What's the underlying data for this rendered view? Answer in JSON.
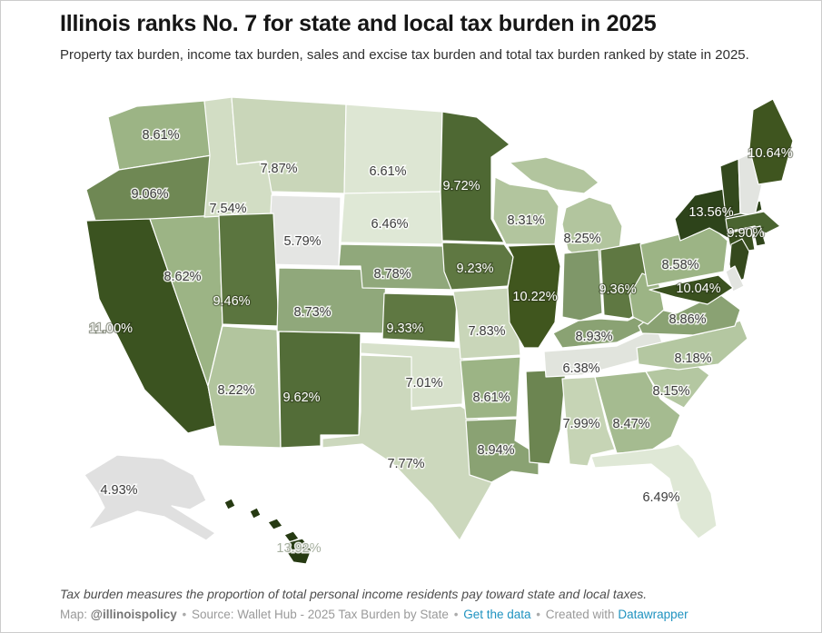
{
  "header": {
    "title": "Illinois ranks No. 7 for state and local tax burden in 2025",
    "subtitle": "Property tax burden, income tax burden, sales and excise tax burden and total tax burden ranked by state in 2025."
  },
  "footer": {
    "note": "Tax burden measures the proportion of total personal income residents pay toward state and local taxes.",
    "credit": {
      "map_label": "Map:",
      "handle": "@illinoispolicy",
      "sep": "•",
      "source_label": "Source:",
      "source": "Wallet Hub - 2025 Tax Burden by State",
      "get_data": "Get the data",
      "created_with": "Created with",
      "tool": "Datawrapper"
    }
  },
  "colors": {
    "background": "#ffffff",
    "frame_border": "#cccccc",
    "title": "#161616",
    "subtitle": "#303030",
    "note": "#4d4d4d",
    "credit": "#9a9a9a",
    "link": "#2093c0",
    "state_border": "#ffffff",
    "label_dark": "#3b3b3b",
    "label_light": "#ffffff",
    "scale_low": "#e4e5e3",
    "scale_high": "#263a12"
  },
  "chart_data": {
    "type": "choropleth",
    "region": "United States",
    "unit": "%",
    "states": [
      {
        "abbr": "WA",
        "name": "Washington",
        "value": 8.61,
        "label": "8.61%",
        "label_style": "dark",
        "fill": "#9cb485"
      },
      {
        "abbr": "OR",
        "name": "Oregon",
        "value": 9.06,
        "label": "9.06%",
        "label_style": "dark",
        "fill": "#6f8854"
      },
      {
        "abbr": "CA",
        "name": "California",
        "value": 11.0,
        "label": "11.00%",
        "label_style": "light",
        "fill": "#3b5320"
      },
      {
        "abbr": "NV",
        "name": "Nevada",
        "value": 8.62,
        "label": "8.62%",
        "label_style": "dark",
        "fill": "#9cb485"
      },
      {
        "abbr": "ID",
        "name": "Idaho",
        "value": 7.54,
        "label": "7.54%",
        "label_style": "dark",
        "fill": "#d2ddc4"
      },
      {
        "abbr": "MT",
        "name": "Montana",
        "value": 7.87,
        "label": "7.87%",
        "label_style": "dark",
        "fill": "#c9d6b9"
      },
      {
        "abbr": "WY",
        "name": "Wyoming",
        "value": 5.79,
        "label": "5.79%",
        "label_style": "dark",
        "fill": "#e4e5e3"
      },
      {
        "abbr": "UT",
        "name": "Utah",
        "value": 9.46,
        "label": "9.46%",
        "label_style": "light",
        "fill": "#5b753f"
      },
      {
        "abbr": "CO",
        "name": "Colorado",
        "value": 8.73,
        "label": "8.73%",
        "label_style": "dark",
        "fill": "#90a87b"
      },
      {
        "abbr": "AZ",
        "name": "Arizona",
        "value": 8.22,
        "label": "8.22%",
        "label_style": "dark",
        "fill": "#b2c59e"
      },
      {
        "abbr": "NM",
        "name": "New Mexico",
        "value": 9.62,
        "label": "9.62%",
        "label_style": "light",
        "fill": "#536d38"
      },
      {
        "abbr": "ND",
        "name": "North Dakota",
        "value": 6.61,
        "label": "6.61%",
        "label_style": "dark",
        "fill": "#dde6d3"
      },
      {
        "abbr": "SD",
        "name": "South Dakota",
        "value": 6.46,
        "label": "6.46%",
        "label_style": "dark",
        "fill": "#dfe8d6"
      },
      {
        "abbr": "NE",
        "name": "Nebraska",
        "value": 8.78,
        "label": "8.78%",
        "label_style": "dark",
        "fill": "#90a87b"
      },
      {
        "abbr": "KS",
        "name": "Kansas",
        "value": 9.33,
        "label": "9.33%",
        "label_style": "light",
        "fill": "#5f7842"
      },
      {
        "abbr": "OK",
        "name": "Oklahoma",
        "value": 7.01,
        "label": "7.01%",
        "label_style": "dark",
        "fill": "#d7e1cb"
      },
      {
        "abbr": "TX",
        "name": "Texas",
        "value": 7.77,
        "label": "7.77%",
        "label_style": "dark",
        "fill": "#ccd8bd"
      },
      {
        "abbr": "MN",
        "name": "Minnesota",
        "value": 9.72,
        "label": "9.72%",
        "label_style": "light",
        "fill": "#4e6833"
      },
      {
        "abbr": "IA",
        "name": "Iowa",
        "value": 9.23,
        "label": "9.23%",
        "label_style": "light",
        "fill": "#5f7842"
      },
      {
        "abbr": "MO",
        "name": "Missouri",
        "value": 7.83,
        "label": "7.83%",
        "label_style": "dark",
        "fill": "#c9d6b9"
      },
      {
        "abbr": "AR",
        "name": "Arkansas",
        "value": 8.61,
        "label": "8.61%",
        "label_style": "dark",
        "fill": "#9cb485"
      },
      {
        "abbr": "LA",
        "name": "Louisiana",
        "value": 8.94,
        "label": "8.94%",
        "label_style": "dark",
        "fill": "#8aa273"
      },
      {
        "abbr": "WI",
        "name": "Wisconsin",
        "value": 8.31,
        "label": "8.31%",
        "label_style": "dark",
        "fill": "#b2c59e"
      },
      {
        "abbr": "IL",
        "name": "Illinois",
        "value": 10.22,
        "label": "10.22%",
        "label_style": "light",
        "fill": "#40561e"
      },
      {
        "abbr": "MS",
        "name": "Mississippi",
        "value": null,
        "label": "",
        "label_style": "none",
        "fill": "#6c8551"
      },
      {
        "abbr": "MI",
        "name": "Michigan",
        "value": 8.25,
        "label": "8.25%",
        "label_style": "dark",
        "fill": "#b2c59e"
      },
      {
        "abbr": "IN",
        "name": "Indiana",
        "value": null,
        "label": "",
        "label_style": "none",
        "fill": "#7f9769"
      },
      {
        "abbr": "OH",
        "name": "Ohio",
        "value": 9.36,
        "label": "9.36%",
        "label_style": "light",
        "fill": "#5f7842"
      },
      {
        "abbr": "KY",
        "name": "Kentucky",
        "value": 8.93,
        "label": "8.93%",
        "label_style": "dark",
        "fill": "#8aa273"
      },
      {
        "abbr": "TN",
        "name": "Tennessee",
        "value": 6.38,
        "label": "6.38%",
        "label_style": "dark",
        "fill": "#e1e4dd"
      },
      {
        "abbr": "AL",
        "name": "Alabama",
        "value": 7.99,
        "label": "7.99%",
        "label_style": "dark",
        "fill": "#c6d4b5"
      },
      {
        "abbr": "GA",
        "name": "Georgia",
        "value": 8.47,
        "label": "8.47%",
        "label_style": "dark",
        "fill": "#a5bb90"
      },
      {
        "abbr": "FL",
        "name": "Florida",
        "value": 6.49,
        "label": "6.49%",
        "label_style": "dark",
        "fill": "#dfe8d6"
      },
      {
        "abbr": "SC",
        "name": "South Carolina",
        "value": 8.15,
        "label": "8.15%",
        "label_style": "dark",
        "fill": "#b4c7a1"
      },
      {
        "abbr": "NC",
        "name": "North Carolina",
        "value": 8.18,
        "label": "8.18%",
        "label_style": "dark",
        "fill": "#b4c7a1"
      },
      {
        "abbr": "VA",
        "name": "Virginia",
        "value": 8.86,
        "label": "8.86%",
        "label_style": "dark",
        "fill": "#8aa273"
      },
      {
        "abbr": "WV",
        "name": "West Virginia",
        "value": null,
        "label": "",
        "label_style": "none",
        "fill": "#9cb485"
      },
      {
        "abbr": "PA",
        "name": "Pennsylvania",
        "value": 8.58,
        "label": "8.58%",
        "label_style": "dark",
        "fill": "#9cb485"
      },
      {
        "abbr": "NY",
        "name": "New York",
        "value": 13.56,
        "label": "13.56%",
        "label_style": "light",
        "fill": "#2d431a"
      },
      {
        "abbr": "VT",
        "name": "Vermont",
        "value": null,
        "label": "",
        "label_style": "none",
        "fill": "#33491d"
      },
      {
        "abbr": "NH",
        "name": "New Hampshire",
        "value": null,
        "label": "",
        "label_style": "none",
        "fill": "#e2e4e0"
      },
      {
        "abbr": "ME",
        "name": "Maine",
        "value": 10.64,
        "label": "10.64%",
        "label_style": "light",
        "fill": "#3f551f"
      },
      {
        "abbr": "MA",
        "name": "Massachusetts",
        "value": 9.9,
        "label": "9.90%",
        "label_style": "light",
        "fill": "#4a6430"
      },
      {
        "abbr": "CT",
        "name": "Connecticut",
        "value": null,
        "label": "",
        "label_style": "none",
        "fill": "#3a5020"
      },
      {
        "abbr": "RI",
        "name": "Rhode Island",
        "value": null,
        "label": "",
        "label_style": "none",
        "fill": "#31461c"
      },
      {
        "abbr": "NJ",
        "name": "New Jersey",
        "value": null,
        "label": "",
        "label_style": "none",
        "fill": "#35491d"
      },
      {
        "abbr": "DE",
        "name": "Delaware",
        "value": null,
        "label": "",
        "label_style": "none",
        "fill": "#e2e4e0"
      },
      {
        "abbr": "MD",
        "name": "Maryland",
        "value": 10.04,
        "label": "10.04%",
        "label_style": "light",
        "fill": "#3a511f"
      },
      {
        "abbr": "AK",
        "name": "Alaska",
        "value": 4.93,
        "label": "4.93%",
        "label_style": "dark",
        "fill": "#e0e0e0"
      },
      {
        "abbr": "HI",
        "name": "Hawaii",
        "value": 13.92,
        "label": "13.92%",
        "label_style": "ocean",
        "fill": "#263a12"
      }
    ]
  }
}
